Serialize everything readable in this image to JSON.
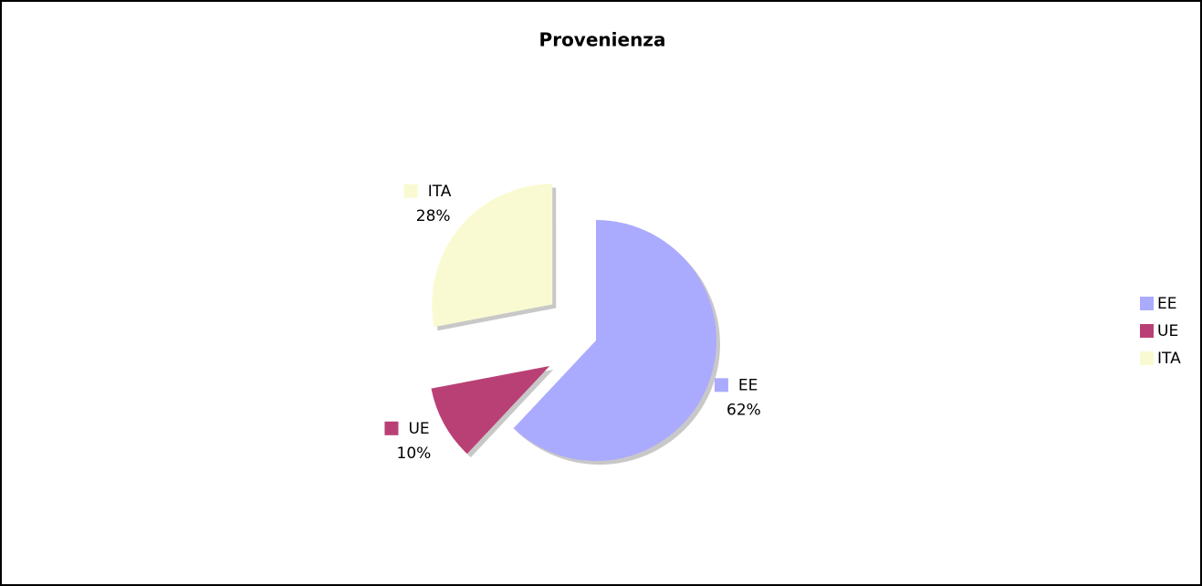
{
  "chart_data": {
    "type": "pie",
    "title": "Provenienza",
    "categories": [
      "EE",
      "UE",
      "ITA"
    ],
    "values": [
      62,
      10,
      28
    ],
    "value_labels": [
      "62%",
      "10%",
      "28%"
    ],
    "colors": [
      "#aaaaff",
      "#b94075",
      "#fafad2"
    ],
    "legend": "right"
  }
}
